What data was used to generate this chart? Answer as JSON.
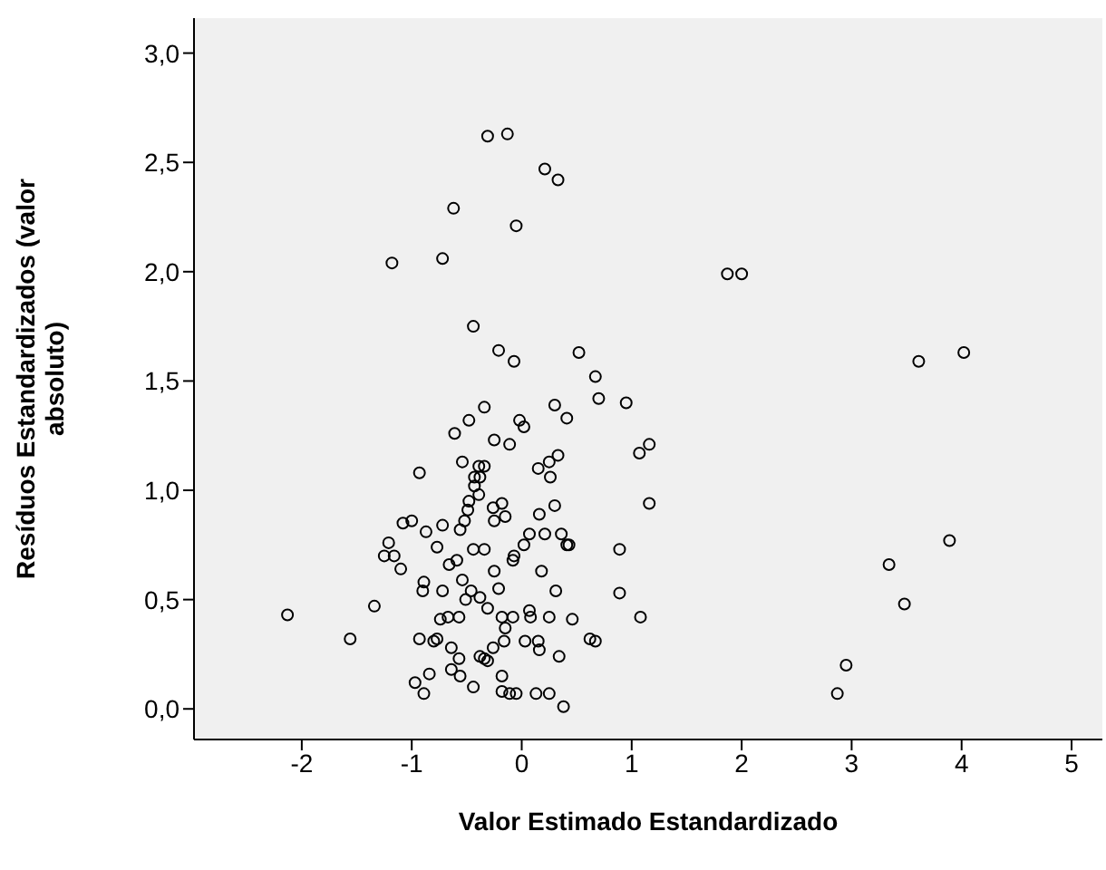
{
  "chart_data": {
    "type": "scatter",
    "xlabel": "Valor Estimado Estandardizado",
    "ylabel": "Resíduos Estandardizados (valor absoluto)",
    "xlim": [
      -2.98,
      5.28
    ],
    "xticks": [
      -2,
      -1,
      0,
      1,
      2,
      3,
      4,
      5
    ],
    "ylim": [
      -0.14,
      3.16
    ],
    "yticks": [
      {
        "value": 0,
        "label": "0,0"
      },
      {
        "value": 0.5,
        "label": "0,5"
      },
      {
        "value": 1,
        "label": "1,0"
      },
      {
        "value": 1.5,
        "label": "1,5"
      },
      {
        "value": 2,
        "label": "2,0"
      },
      {
        "value": 2.5,
        "label": "2,5"
      },
      {
        "value": 3,
        "label": "3,0"
      }
    ],
    "marker": "circle",
    "grid": false,
    "legend": false,
    "series": [
      {
        "color": "#000000",
        "x": [
          -0.31,
          -0.13,
          0.21,
          0.33,
          -0.62,
          -0.05,
          -0.72,
          -1.18,
          1.87,
          2.0,
          3.61,
          4.02,
          -0.44,
          -0.21,
          -0.07,
          0.52,
          0.67,
          0.7,
          0.95,
          0.3,
          0.41,
          -0.34,
          -0.48,
          -0.61,
          -0.02,
          0.02,
          -0.25,
          -0.11,
          1.16,
          1.07,
          -0.54,
          -0.39,
          -0.34,
          -0.43,
          -0.38,
          -0.43,
          -0.39,
          -0.48,
          -0.49,
          -0.52,
          -0.56,
          -0.93,
          0.15,
          0.25,
          0.33,
          0.26,
          1.16,
          -0.26,
          -0.18,
          -0.15,
          -0.25,
          0.16,
          0.3,
          -1.08,
          -1.0,
          -0.87,
          -0.72,
          -1.21,
          -1.25,
          -1.16,
          -1.1,
          -0.77,
          -0.66,
          -0.59,
          -0.44,
          -0.34,
          -0.25,
          -0.21,
          -0.07,
          -0.08,
          0.02,
          0.07,
          0.21,
          0.36,
          0.41,
          0.43,
          0.18,
          0.31,
          0.89,
          0.89,
          1.08,
          -0.89,
          -0.9,
          -0.72,
          -0.54,
          -0.51,
          -0.46,
          -0.38,
          -0.31,
          -0.74,
          -0.67,
          -0.57,
          -1.34,
          -2.13,
          -1.56,
          -0.18,
          -0.08,
          0.07,
          0.08,
          0.25,
          0.46,
          -0.15,
          -0.93,
          -0.8,
          -0.77,
          -0.64,
          -0.57,
          -0.26,
          -0.16,
          -0.38,
          -0.34,
          -0.31,
          0.03,
          0.15,
          0.16,
          0.34,
          0.62,
          0.67,
          -0.84,
          -0.97,
          -0.89,
          -0.64,
          -0.56,
          -0.44,
          -0.18,
          -0.18,
          -0.11,
          -0.05,
          0.13,
          0.25,
          0.38,
          3.89,
          3.34,
          3.48,
          2.95,
          2.87
        ],
        "values": [
          2.62,
          2.63,
          2.47,
          2.42,
          2.29,
          2.21,
          2.06,
          2.04,
          1.99,
          1.99,
          1.59,
          1.63,
          1.75,
          1.64,
          1.59,
          1.63,
          1.52,
          1.42,
          1.4,
          1.39,
          1.33,
          1.38,
          1.32,
          1.26,
          1.32,
          1.29,
          1.23,
          1.21,
          1.21,
          1.17,
          1.13,
          1.11,
          1.11,
          1.06,
          1.06,
          1.02,
          0.98,
          0.95,
          0.91,
          0.86,
          0.82,
          1.08,
          1.1,
          1.13,
          1.16,
          1.06,
          0.94,
          0.92,
          0.94,
          0.88,
          0.86,
          0.89,
          0.93,
          0.85,
          0.86,
          0.81,
          0.84,
          0.76,
          0.7,
          0.7,
          0.64,
          0.74,
          0.66,
          0.68,
          0.73,
          0.73,
          0.63,
          0.55,
          0.7,
          0.68,
          0.75,
          0.8,
          0.8,
          0.8,
          0.75,
          0.75,
          0.63,
          0.54,
          0.73,
          0.53,
          0.42,
          0.58,
          0.54,
          0.54,
          0.59,
          0.5,
          0.54,
          0.51,
          0.46,
          0.41,
          0.42,
          0.42,
          0.47,
          0.43,
          0.32,
          0.42,
          0.42,
          0.45,
          0.42,
          0.42,
          0.41,
          0.37,
          0.32,
          0.31,
          0.32,
          0.28,
          0.23,
          0.28,
          0.31,
          0.24,
          0.23,
          0.22,
          0.31,
          0.31,
          0.27,
          0.24,
          0.32,
          0.31,
          0.16,
          0.12,
          0.07,
          0.18,
          0.15,
          0.1,
          0.15,
          0.08,
          0.07,
          0.07,
          0.07,
          0.07,
          0.01,
          0.77,
          0.66,
          0.48,
          0.2,
          0.07
        ]
      }
    ]
  }
}
